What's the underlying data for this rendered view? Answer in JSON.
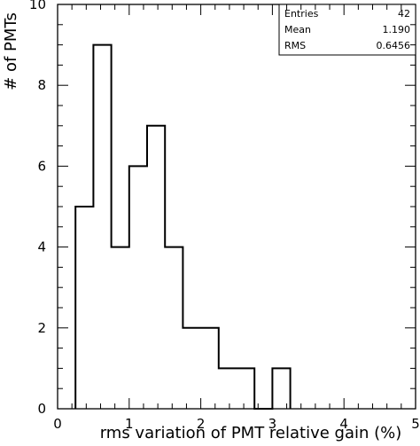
{
  "chart_data": {
    "type": "bar",
    "xlabel": "rms variation of PMT relative gain (%)",
    "ylabel": "# of PMTs",
    "xlim": [
      0,
      5
    ],
    "ylim": [
      0,
      10
    ],
    "x_ticks": [
      "0",
      "1",
      "2",
      "3",
      "4",
      "5"
    ],
    "y_ticks": [
      "0",
      "2",
      "4",
      "6",
      "8",
      "10"
    ],
    "bin_edges": [
      0.25,
      0.5,
      0.75,
      1.0,
      1.25,
      1.5,
      1.75,
      2.0,
      2.25,
      2.5,
      2.75,
      3.0,
      3.25
    ],
    "values": [
      5,
      9,
      4,
      6,
      7,
      4,
      2,
      2,
      1,
      1,
      0,
      1
    ],
    "stats": {
      "entries_label": "Entries",
      "entries_value": "42",
      "mean_label": "Mean",
      "mean_value": "1.190",
      "rms_label": "RMS",
      "rms_value": "0.6456"
    }
  }
}
